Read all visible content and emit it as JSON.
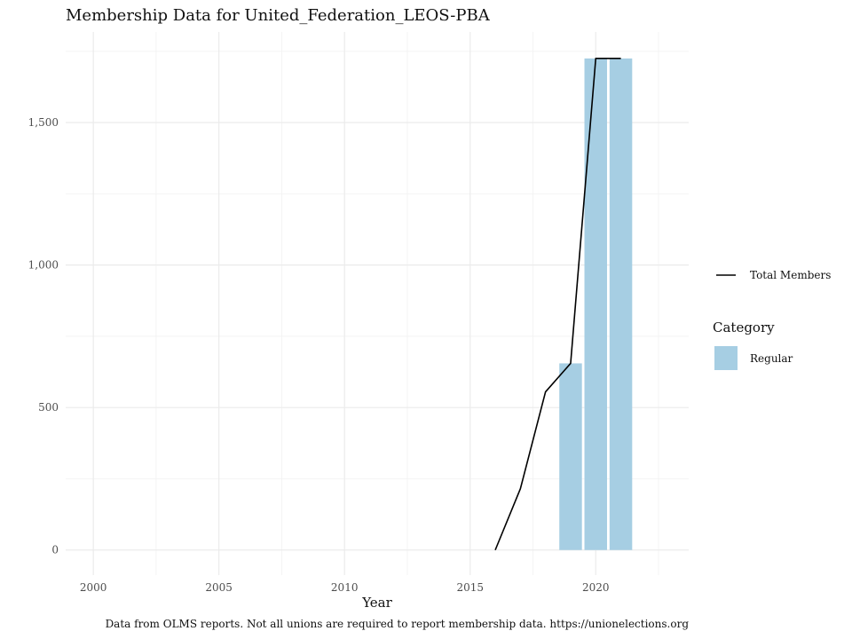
{
  "chart_data": {
    "type": "bar",
    "title": "Membership Data for United_Federation_LEOS-PBA",
    "xlabel": "Year",
    "ylabel": "",
    "caption": "Data from OLMS reports. Not all unions are required to report membership data. https://unionelections.org",
    "xlim": [
      1998.9,
      2023.7
    ],
    "ylim": [
      -88,
      1818
    ],
    "x_ticks": [
      {
        "value": 2000,
        "label": "2000"
      },
      {
        "value": 2005,
        "label": "2005"
      },
      {
        "value": 2010,
        "label": "2010"
      },
      {
        "value": 2015,
        "label": "2015"
      },
      {
        "value": 2020,
        "label": "2020"
      }
    ],
    "y_ticks": [
      {
        "value": 0,
        "label": "0"
      },
      {
        "value": 500,
        "label": "500"
      },
      {
        "value": 1000,
        "label": "1,000"
      },
      {
        "value": 1500,
        "label": "1,500"
      }
    ],
    "bars": {
      "name": "Regular",
      "color": "#a6cee3",
      "x": [
        2019,
        2020,
        2021
      ],
      "values": [
        655,
        1725,
        1725
      ]
    },
    "line": {
      "name": "Total Members",
      "color": "#000000",
      "x": [
        2016,
        2017,
        2018,
        2019,
        2020,
        2021
      ],
      "values": [
        0,
        215,
        555,
        655,
        1725,
        1725
      ]
    },
    "grid": true,
    "legend": {
      "position": "right",
      "line_label": "Total Members",
      "fill_title": "Category",
      "fill_label": "Regular"
    }
  }
}
